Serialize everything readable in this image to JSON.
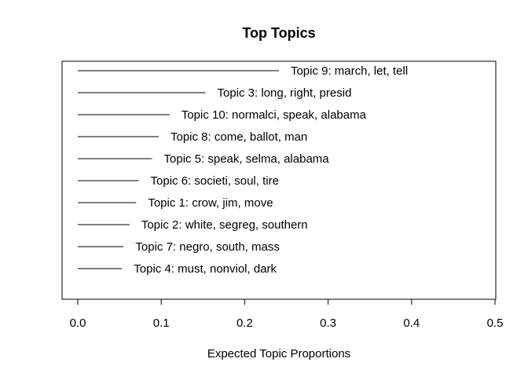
{
  "chart_data": {
    "type": "bar",
    "title": "Top Topics",
    "xlabel": "Expected Topic Proportions",
    "ylabel": "",
    "xlim": [
      0,
      0.5
    ],
    "xticks": [
      "0.0",
      "0.1",
      "0.2",
      "0.3",
      "0.4",
      "0.5"
    ],
    "xtick_values": [
      0,
      0.1,
      0.2,
      0.3,
      0.4,
      0.5
    ],
    "orientation": "horizontal",
    "grid": false,
    "categories": [
      "Topic 9: march, let, tell",
      "Topic 3: long, right, presid",
      "Topic 10: normalci, speak, alabama",
      "Topic 8: come, ballot, man",
      "Topic 5: speak, selma, alabama",
      "Topic 6: societi, soul, tire",
      "Topic 1: crow, jim, move",
      "Topic 2: white, segreg, southern",
      "Topic 7: negro, south, mass",
      "Topic 4: must, nonviol, dark"
    ],
    "values": [
      0.241,
      0.153,
      0.11,
      0.097,
      0.089,
      0.073,
      0.07,
      0.062,
      0.055,
      0.053
    ]
  }
}
